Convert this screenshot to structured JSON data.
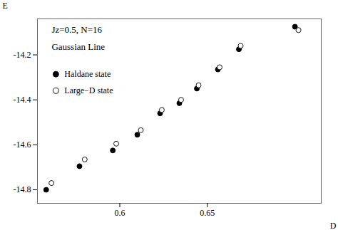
{
  "chart_data": {
    "type": "scatter",
    "xlabel": "D",
    "ylabel": "E",
    "xlim": [
      0.553,
      0.715
    ],
    "ylim": [
      -14.86,
      -14.04
    ],
    "xticks": [
      0.6,
      0.65
    ],
    "yticks": [
      -14.8,
      -14.6,
      -14.4,
      -14.2
    ],
    "annotations": [
      "Jz=0.5, N=16",
      "Gaussian Line"
    ],
    "legend": "upper left",
    "series": [
      {
        "name": "Haldane state",
        "color": "#000000",
        "marker": "filled circle",
        "x": [
          0.558,
          0.577,
          0.596,
          0.61,
          0.623,
          0.634,
          0.644,
          0.656,
          0.668,
          0.7
        ],
        "values": [
          -14.8,
          -14.695,
          -14.625,
          -14.555,
          -14.46,
          -14.415,
          -14.35,
          -14.265,
          -14.175,
          -14.075
        ]
      },
      {
        "name": "Large−D state",
        "color": "#000000",
        "marker": "open circle",
        "x": [
          0.561,
          0.58,
          0.598,
          0.612,
          0.624,
          0.635,
          0.645,
          0.657,
          0.669,
          0.702
        ],
        "values": [
          -14.77,
          -14.665,
          -14.595,
          -14.535,
          -14.445,
          -14.4,
          -14.335,
          -14.255,
          -14.16,
          -14.09
        ]
      }
    ]
  }
}
